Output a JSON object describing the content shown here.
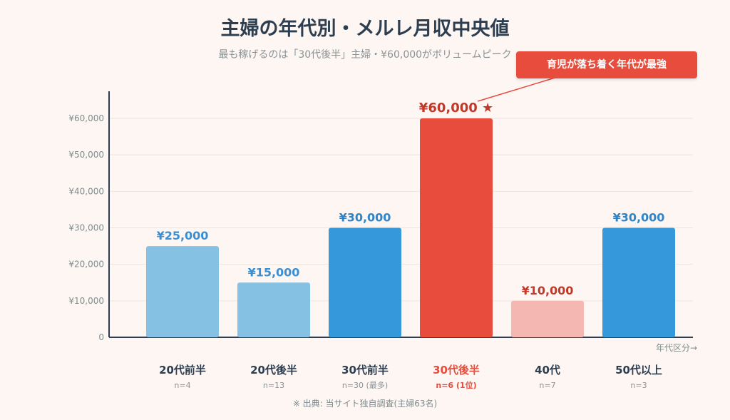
{
  "chart_data": {
    "type": "bar",
    "title": "主婦の年代別・メルレ月収中央値",
    "subtitle": "最も稼げるのは「30代後半」主婦・¥60,000がボリュームピーク",
    "xlabel": "年代区分→",
    "ylabel": "",
    "ylim": [
      0,
      67000
    ],
    "yticks": [
      0,
      10000,
      20000,
      30000,
      40000,
      50000,
      60000
    ],
    "ytick_labels": [
      "0",
      "¥10,000",
      "¥20,000",
      "¥30,000",
      "¥40,000",
      "¥50,000",
      "¥60,000"
    ],
    "grid": true,
    "categories": [
      "20代前半",
      "20代後半",
      "30代前半",
      "30代後半",
      "40代",
      "50代以上"
    ],
    "values": [
      25000,
      15000,
      30000,
      60000,
      10000,
      30000
    ],
    "value_labels": [
      "¥25,000",
      "¥15,000",
      "¥30,000",
      "¥60,000 ★",
      "¥10,000",
      "¥30,000"
    ],
    "sample_labels": [
      "n=4",
      "n=13",
      "n=30 (最多)",
      "n=6 (1位)",
      "n=7",
      "n=3"
    ],
    "bar_colors": [
      "#85c1e2",
      "#85c1e2",
      "#3498db",
      "#e74c3c",
      "#f5b7b1",
      "#3498db"
    ],
    "label_colors": [
      "#3a8fd4",
      "#3a8fd4",
      "#2e86c9",
      "#c0392b",
      "#c0392b",
      "#2e86c9"
    ],
    "highlight_index": 3,
    "annotation": "育児が落ち着く年代が最強",
    "footnote": "※ 出典: 当サイト独自調査(主婦63名)"
  },
  "colors": {
    "background": "#fdf6f3",
    "axis": "#2c3e50",
    "grid": "#eee3de",
    "highlight": "#e74c3c"
  }
}
